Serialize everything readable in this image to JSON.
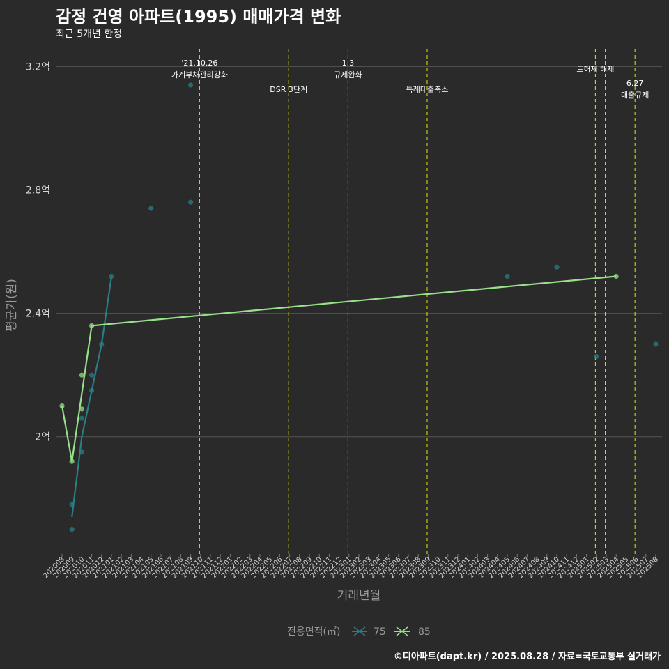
{
  "title": "감정 건영 아파트(1995) 매매가격 변화",
  "subtitle": "최근 5개년 한정",
  "credit": "©디아파트(dapt.kr) / 2025.08.28 / 자료=국토교통부 실거래가",
  "colors": {
    "background": "#2b2a2b",
    "grid": "#555555",
    "s75": "#2a7f84",
    "s85": "#98e08a",
    "event": "#e6e600"
  },
  "chart_data": {
    "type": "line",
    "title": "감정 건영 아파트(1995) 매매가격 변화",
    "subtitle": "최근 5개년 한정",
    "xlabel": "거래년월",
    "ylabel": "평균가(원)",
    "ylim": [
      1.62,
      3.28
    ],
    "yticks": [
      {
        "v": 2.0,
        "label": "2억"
      },
      {
        "v": 2.4,
        "label": "2.4억"
      },
      {
        "v": 2.8,
        "label": "2.8억"
      },
      {
        "v": 3.2,
        "label": "3.2억"
      }
    ],
    "categories": [
      "202008",
      "202009",
      "202010",
      "202011",
      "202012",
      "202101",
      "202102",
      "202103",
      "202104",
      "202105",
      "202106",
      "202107",
      "202108",
      "202109",
      "202110",
      "202111",
      "202112",
      "202201",
      "202202",
      "202203",
      "202204",
      "202205",
      "202206",
      "202207",
      "202208",
      "202209",
      "202210",
      "202211",
      "202212",
      "202301",
      "202302",
      "202303",
      "202304",
      "202305",
      "202306",
      "202307",
      "202308",
      "202309",
      "202310",
      "202311",
      "202312",
      "202401",
      "202402",
      "202403",
      "202404",
      "202405",
      "202406",
      "202407",
      "202408",
      "202409",
      "202410",
      "202411",
      "202412",
      "202501",
      "202502",
      "202503",
      "202504",
      "202505",
      "202506",
      "202507",
      "202508"
    ],
    "events": [
      {
        "x": 13.9,
        "lines": [
          "'21.10.26",
          "가계부채관리강화"
        ],
        "level": "high"
      },
      {
        "x": 22.9,
        "lines": [
          "DSR 3단계"
        ],
        "level": "low"
      },
      {
        "x": 28.9,
        "lines": [
          "1.3",
          "규제완화"
        ],
        "level": "high"
      },
      {
        "x": 36.9,
        "lines": [
          "특례대출축소"
        ],
        "level": "low"
      },
      {
        "x": 53.9,
        "lines": [
          "토허제 해제"
        ],
        "level": "mid"
      },
      {
        "x": 54.9,
        "lines": [],
        "level": "mid"
      },
      {
        "x": 57.9,
        "lines": [
          "6.27",
          "대출규제"
        ],
        "level": "lowest"
      }
    ],
    "series": [
      {
        "name": "75",
        "line": [
          {
            "x": 1,
            "y": 1.74
          },
          {
            "x": 2,
            "y": 2.0
          },
          {
            "x": 3,
            "y": 2.15
          },
          {
            "x": 4,
            "y": 2.3
          },
          {
            "x": 5,
            "y": 2.52
          }
        ],
        "points": [
          {
            "x": 1,
            "y": 1.78
          },
          {
            "x": 1,
            "y": 1.7
          },
          {
            "x": 2,
            "y": 1.95
          },
          {
            "x": 2,
            "y": 2.06
          },
          {
            "x": 3,
            "y": 2.2
          },
          {
            "x": 3,
            "y": 2.15
          },
          {
            "x": 4,
            "y": 2.3
          },
          {
            "x": 5,
            "y": 2.52
          },
          {
            "x": 9,
            "y": 2.74
          },
          {
            "x": 13,
            "y": 3.14
          },
          {
            "x": 13,
            "y": 2.76
          },
          {
            "x": 45,
            "y": 2.52
          },
          {
            "x": 50,
            "y": 2.55
          },
          {
            "x": 54,
            "y": 2.26
          },
          {
            "x": 60,
            "y": 2.3
          }
        ]
      },
      {
        "name": "85",
        "line": [
          {
            "x": 0,
            "y": 2.1
          },
          {
            "x": 1,
            "y": 1.92
          },
          {
            "x": 3,
            "y": 2.36
          },
          {
            "x": 56,
            "y": 2.52
          }
        ],
        "points": [
          {
            "x": 0,
            "y": 2.1
          },
          {
            "x": 1,
            "y": 1.92
          },
          {
            "x": 2,
            "y": 2.2
          },
          {
            "x": 2,
            "y": 2.09
          },
          {
            "x": 3,
            "y": 2.36
          },
          {
            "x": 56,
            "y": 2.52
          }
        ]
      }
    ],
    "legend": {
      "title": "전용면적(㎡)",
      "items": [
        "75",
        "85"
      ],
      "position": "bottom"
    }
  }
}
